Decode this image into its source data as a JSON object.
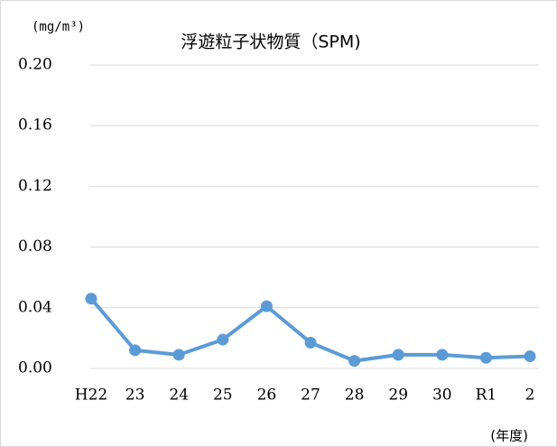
{
  "chart_data": {
    "type": "line",
    "title": "浮遊粒子状物質（SPM)",
    "y_label": "(mg/m³)",
    "x_label": "(年度)",
    "categories": [
      "H22",
      "23",
      "24",
      "25",
      "26",
      "27",
      "28",
      "29",
      "30",
      "R1",
      "2"
    ],
    "series": [
      {
        "name": "SPM",
        "color": "#5b9bd5",
        "values": [
          0.046,
          0.012,
          0.009,
          0.019,
          0.041,
          0.017,
          0.005,
          0.009,
          0.009,
          0.007,
          0.008
        ]
      }
    ],
    "ylim": [
      0,
      0.2
    ],
    "yticks": [
      {
        "value": 0,
        "label": "0.00"
      },
      {
        "value": 0.04,
        "label": "0.04"
      },
      {
        "value": 0.08,
        "label": "0.08"
      },
      {
        "value": 0.12,
        "label": "0.12"
      },
      {
        "value": 0.16,
        "label": "0.16"
      },
      {
        "value": 0.2,
        "label": "0.20"
      }
    ],
    "grid": true
  }
}
